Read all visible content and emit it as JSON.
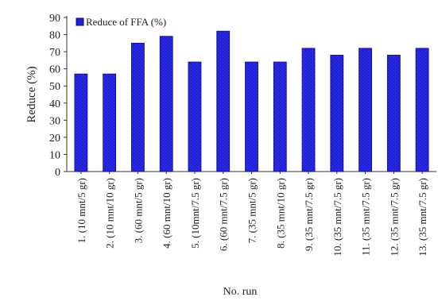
{
  "chart_data": {
    "type": "bar",
    "title": "",
    "xlabel": "No. run",
    "ylabel": "Reduce (%)",
    "ylim": [
      0,
      90
    ],
    "yticks": [
      0,
      10,
      20,
      30,
      40,
      50,
      60,
      70,
      80,
      90
    ],
    "grid": false,
    "legend_position": "top-left",
    "categories": [
      "1. (10 mnt/5 gr)",
      "2. (10 mnt/10 gr)",
      "3. (60 mnt/5 gr)",
      "4. (60 mnt/10 gr)",
      "5. (10mnt/7.5 gr)",
      "6. (60 mnt/7.5 gr)",
      "7. (35 mnt/5 gr)",
      "8. (35 mnt/10 gr)",
      "9. (35 mnt/7.5 gr)",
      "10. (35 mnt/7.5 gr)",
      "11. (35 mnt/7.5 gr)",
      "12. (35 mnt/7.5 gr)",
      "13. (35 mnt/7.5 gr)"
    ],
    "series": [
      {
        "name": "Reduce of FFA (%)",
        "color": "#1f1fd6",
        "values": [
          57,
          57,
          75,
          79,
          64,
          82,
          64,
          64,
          72,
          68,
          72,
          68,
          72
        ]
      }
    ]
  }
}
